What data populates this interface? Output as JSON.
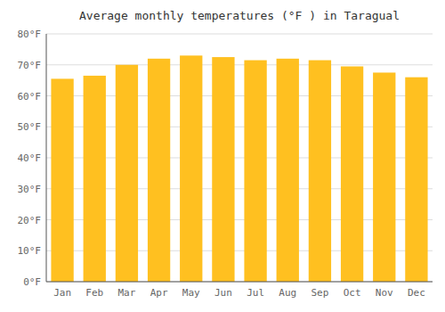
{
  "chart_data": {
    "type": "bar",
    "title": "Average monthly temperatures (°F ) in Taragual",
    "categories": [
      "Jan",
      "Feb",
      "Mar",
      "Apr",
      "May",
      "Jun",
      "Jul",
      "Aug",
      "Sep",
      "Oct",
      "Nov",
      "Dec"
    ],
    "values": [
      65.5,
      66.5,
      70.0,
      72.0,
      73.0,
      72.5,
      71.5,
      72.0,
      71.5,
      69.5,
      67.5,
      66.0
    ],
    "color": "#FFC020",
    "ylim": [
      0,
      80
    ],
    "yticks": [
      {
        "value": 0,
        "label": "0°F"
      },
      {
        "value": 10,
        "label": "10°F"
      },
      {
        "value": 20,
        "label": "20°F"
      },
      {
        "value": 30,
        "label": "30°F"
      },
      {
        "value": 40,
        "label": "40°F"
      },
      {
        "value": 50,
        "label": "50°F"
      },
      {
        "value": 60,
        "label": "60°F"
      },
      {
        "value": 70,
        "label": "70°F"
      },
      {
        "value": 80,
        "label": "80°F"
      }
    ],
    "grid": true
  }
}
